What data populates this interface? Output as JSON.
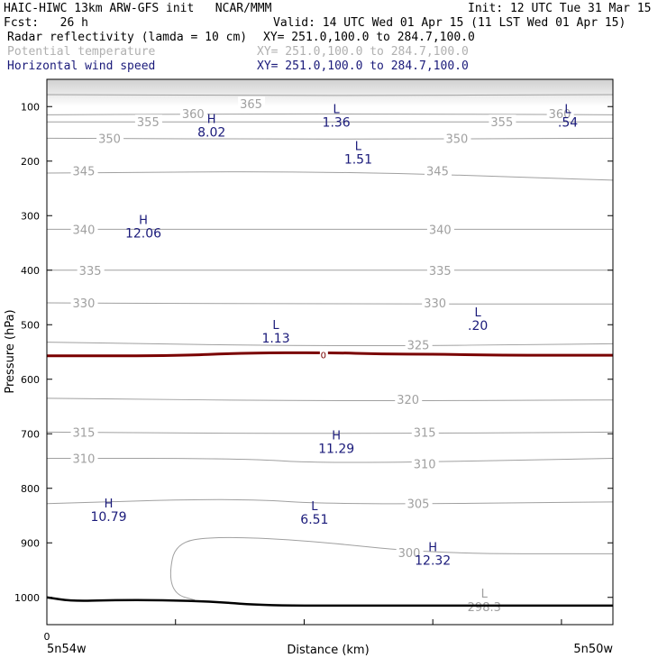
{
  "header": {
    "line1_left": "HAIC-HIWC 13km ARW-GFS init   NCAR/MMM",
    "line1_right": "Init: 12 UTC Tue 31 Mar 15",
    "fcst": "Fcst:   26 h",
    "valid": "Valid: 14 UTC Wed 01 Apr 15 (11 LST Wed 01 Apr 15)",
    "field1": "Radar reflectivity (lamda = 10 cm)",
    "field1_xy": "XY= 251.0,100.0 to 284.7,100.0",
    "field2": "Potential temperature",
    "field2_xy": "XY= 251.0,100.0 to 284.7,100.0",
    "field3": "Horizontal wind speed",
    "field3_xy": "XY= 251.0,100.0 to 284.7,100.0"
  },
  "colors": {
    "theta": "#a0a0a0",
    "wind": "#1a1a7a",
    "freezing": "#7a0000",
    "ground": "#000000",
    "field2_text": "#b0b0b0",
    "field3_text": "#1a1a7a"
  },
  "chart_data": {
    "type": "line",
    "title": "",
    "xlabel": "Distance (km)",
    "ylabel": "Pressure (hPa)",
    "x_ticks": [
      "0"
    ],
    "x_endpoint_labels": [
      "5n54w",
      "5n50w"
    ],
    "xlim": [
      0,
      440
    ],
    "yticks": [
      100,
      200,
      300,
      400,
      500,
      600,
      700,
      800,
      900,
      1000
    ],
    "ylim": [
      50,
      1050
    ],
    "freezing_level_label": "0",
    "freezing_level_hpa": 555,
    "theta_contours": [
      {
        "label": "365",
        "p": 78,
        "pts": [
          [
            0,
            78
          ],
          [
            220,
            80
          ],
          [
            440,
            78
          ]
        ],
        "label_pos": [
          [
            150,
            95
          ]
        ]
      },
      {
        "label": "360",
        "p": 113,
        "pts": [
          [
            0,
            115
          ],
          [
            220,
            113
          ],
          [
            440,
            115
          ]
        ],
        "label_pos": [
          [
            105,
            113
          ],
          [
            390,
            113
          ]
        ]
      },
      {
        "label": "355",
        "p": 128,
        "pts": [
          [
            0,
            128
          ],
          [
            220,
            128
          ],
          [
            440,
            128
          ]
        ],
        "label_pos": [
          [
            70,
            128
          ],
          [
            345,
            128
          ]
        ]
      },
      {
        "label": "350",
        "p": 158,
        "pts": [
          [
            0,
            158
          ],
          [
            220,
            160
          ],
          [
            440,
            158
          ]
        ],
        "label_pos": [
          [
            40,
            158
          ],
          [
            310,
            158
          ]
        ]
      },
      {
        "label": "345",
        "p": 218,
        "pts": [
          [
            0,
            222
          ],
          [
            220,
            218
          ],
          [
            440,
            235
          ]
        ],
        "label_pos": [
          [
            20,
            218
          ],
          [
            295,
            218
          ]
        ]
      },
      {
        "label": "340",
        "p": 325,
        "pts": [
          [
            0,
            325
          ],
          [
            220,
            325
          ],
          [
            440,
            325
          ]
        ],
        "label_pos": [
          [
            20,
            325
          ],
          [
            297,
            325
          ]
        ]
      },
      {
        "label": "335",
        "p": 400,
        "pts": [
          [
            0,
            400
          ],
          [
            220,
            400
          ],
          [
            440,
            400
          ]
        ],
        "label_pos": [
          [
            25,
            400
          ],
          [
            297,
            400
          ]
        ]
      },
      {
        "label": "330",
        "p": 460,
        "pts": [
          [
            0,
            460
          ],
          [
            220,
            462
          ],
          [
            440,
            462
          ]
        ],
        "label_pos": [
          [
            20,
            460
          ],
          [
            293,
            460
          ]
        ]
      },
      {
        "label": "325",
        "p": 538,
        "pts": [
          [
            0,
            532
          ],
          [
            220,
            540
          ],
          [
            440,
            535
          ]
        ],
        "label_pos": [
          [
            280,
            537
          ]
        ]
      },
      {
        "label": "320",
        "p": 637,
        "pts": [
          [
            0,
            635
          ],
          [
            220,
            640
          ],
          [
            440,
            638
          ]
        ],
        "label_pos": [
          [
            272,
            637
          ]
        ]
      },
      {
        "label": "315",
        "p": 697,
        "pts": [
          [
            0,
            697
          ],
          [
            220,
            700
          ],
          [
            440,
            697
          ]
        ],
        "label_pos": [
          [
            20,
            697
          ],
          [
            285,
            697
          ]
        ]
      },
      {
        "label": "310",
        "p": 745,
        "pts": [
          [
            0,
            745
          ],
          [
            150,
            745
          ],
          [
            220,
            755
          ],
          [
            440,
            745
          ]
        ],
        "label_pos": [
          [
            20,
            745
          ],
          [
            285,
            755
          ]
        ]
      },
      {
        "label": "305",
        "p": 828,
        "pts": [
          [
            0,
            828
          ],
          [
            150,
            818
          ],
          [
            220,
            830
          ],
          [
            440,
            825
          ]
        ],
        "label_pos": [
          [
            280,
            828
          ]
        ]
      },
      {
        "label": "300",
        "p": 918,
        "pts": [
          [
            440,
            920
          ],
          [
            300,
            920
          ],
          [
            200,
            895
          ],
          [
            130,
            888
          ],
          [
            100,
            900
          ],
          [
            95,
            960
          ],
          [
            100,
            995
          ],
          [
            115,
            1005
          ]
        ],
        "label_pos": [
          [
            273,
            918
          ]
        ]
      }
    ],
    "wind_extrema": [
      {
        "type": "L",
        "value": "1.36",
        "x": 225,
        "p": 112
      },
      {
        "type": "L",
        "value": ".54",
        "x": 405,
        "p": 112
      },
      {
        "type": "H",
        "value": "8.02",
        "x": 128,
        "p": 130
      },
      {
        "type": "L",
        "value": "1.51",
        "x": 242,
        "p": 180
      },
      {
        "type": "H",
        "value": "12.06",
        "x": 75,
        "p": 315
      },
      {
        "type": "L",
        "value": ".20",
        "x": 335,
        "p": 485
      },
      {
        "type": "L",
        "value": "1.13",
        "x": 178,
        "p": 508
      },
      {
        "type": "H",
        "value": "11.29",
        "x": 225,
        "p": 710
      },
      {
        "type": "H",
        "value": "10.79",
        "x": 48,
        "p": 835
      },
      {
        "type": "L",
        "value": "6.51",
        "x": 208,
        "p": 840
      },
      {
        "type": "H",
        "value": "12.32",
        "x": 300,
        "p": 915
      }
    ],
    "theta_extrema": [
      {
        "type": "L",
        "value": "298.3",
        "x": 340,
        "p": 1000
      }
    ],
    "ground_profile": [
      [
        0,
        1000
      ],
      [
        20,
        1007
      ],
      [
        50,
        1005
      ],
      [
        90,
        1005
      ],
      [
        130,
        1008
      ],
      [
        170,
        1015
      ],
      [
        250,
        1015
      ],
      [
        440,
        1015
      ]
    ],
    "freezing_profile": [
      [
        0,
        557
      ],
      [
        100,
        557
      ],
      [
        150,
        552
      ],
      [
        220,
        551
      ],
      [
        260,
        554
      ],
      [
        300,
        554
      ],
      [
        350,
        556
      ],
      [
        440,
        556
      ]
    ]
  }
}
